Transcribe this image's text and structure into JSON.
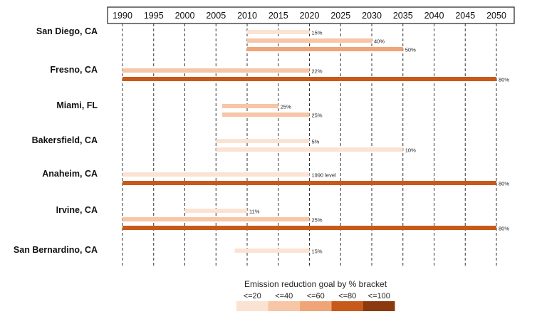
{
  "chart_data": {
    "type": "bar",
    "subtype": "horizontal-range",
    "x_ticks": [
      1990,
      1995,
      2000,
      2005,
      2010,
      2015,
      2020,
      2025,
      2030,
      2035,
      2040,
      2045,
      2050
    ],
    "xlim": [
      1990,
      2050
    ],
    "bracket_colors": [
      "#fbe3d3",
      "#f6c6a6",
      "#f0a579",
      "#c75a1b",
      "#8a3a0e"
    ],
    "cities": [
      {
        "name": "San Diego, CA",
        "bars": [
          {
            "start": 2010,
            "end": 2020,
            "label": "15%",
            "bracket": 0
          },
          {
            "start": 2010,
            "end": 2030,
            "label": "40%",
            "bracket": 1
          },
          {
            "start": 2010,
            "end": 2035,
            "label": "50%",
            "bracket": 2
          }
        ]
      },
      {
        "name": "Fresno, CA",
        "bars": [
          {
            "start": 1990,
            "end": 2020,
            "label": "22%",
            "bracket": 1
          },
          {
            "start": 1990,
            "end": 2050,
            "label": "80%",
            "bracket": 3
          }
        ]
      },
      {
        "name": "Miami, FL",
        "bars": [
          {
            "start": 2006,
            "end": 2015,
            "label": "25%",
            "bracket": 1
          },
          {
            "start": 2006,
            "end": 2020,
            "label": "25%",
            "bracket": 1
          }
        ]
      },
      {
        "name": "Bakersfield, CA",
        "bars": [
          {
            "start": 2005,
            "end": 2020,
            "label": "5%",
            "bracket": 0
          },
          {
            "start": 2005,
            "end": 2035,
            "label": "10%",
            "bracket": 0
          }
        ]
      },
      {
        "name": "Anaheim, CA",
        "bars": [
          {
            "start": 1990,
            "end": 2020,
            "label": "1990 level",
            "bracket": 0
          },
          {
            "start": 1990,
            "end": 2050,
            "label": "80%",
            "bracket": 3
          }
        ]
      },
      {
        "name": "Irvine, CA",
        "bars": [
          {
            "start": 2000,
            "end": 2010,
            "label": "11%",
            "bracket": 0
          },
          {
            "start": 1990,
            "end": 2020,
            "label": "25%",
            "bracket": 1
          },
          {
            "start": 1990,
            "end": 2050,
            "label": "80%",
            "bracket": 3
          }
        ]
      },
      {
        "name": "San Bernardino, CA",
        "bars": [
          {
            "start": 2008,
            "end": 2020,
            "label": "15%",
            "bracket": 0
          }
        ]
      }
    ],
    "legend": {
      "title": "Emission reduction goal by % bracket",
      "labels": [
        "<=20",
        "<=40",
        "<=60",
        "<=80",
        "<=100"
      ]
    }
  }
}
